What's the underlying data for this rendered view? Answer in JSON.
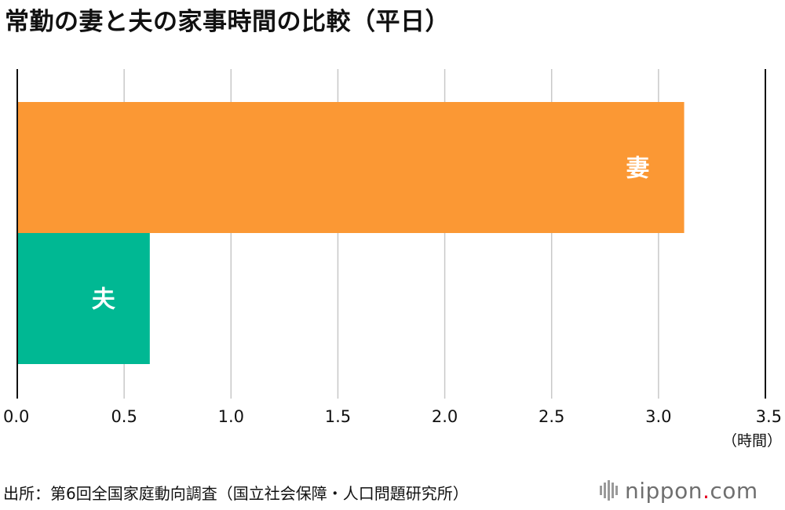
{
  "title": "常勤の妻と夫の家事時間の比較（平日）",
  "source": "出所：第6回全国家庭動向調査（国立社会保障・人口問題研究所）",
  "brand": {
    "name_part1": "nippon",
    "dot": ".",
    "name_part2": "com",
    "icon": "nippon-com-logo-icon",
    "color": "#6f6f6f",
    "accent": "#e6001f"
  },
  "chart_data": {
    "type": "bar",
    "orientation": "horizontal",
    "categories": [
      "妻",
      "夫"
    ],
    "values": [
      3.12,
      0.62
    ],
    "colors": [
      "#fb9834",
      "#00b893"
    ],
    "xlim": [
      0,
      3.5
    ],
    "xticks": [
      "0.0",
      "0.5",
      "1.0",
      "1.5",
      "2.0",
      "2.5",
      "3.0",
      "3.5"
    ],
    "xunit": "（時間）",
    "grid": true,
    "legend": "none"
  }
}
